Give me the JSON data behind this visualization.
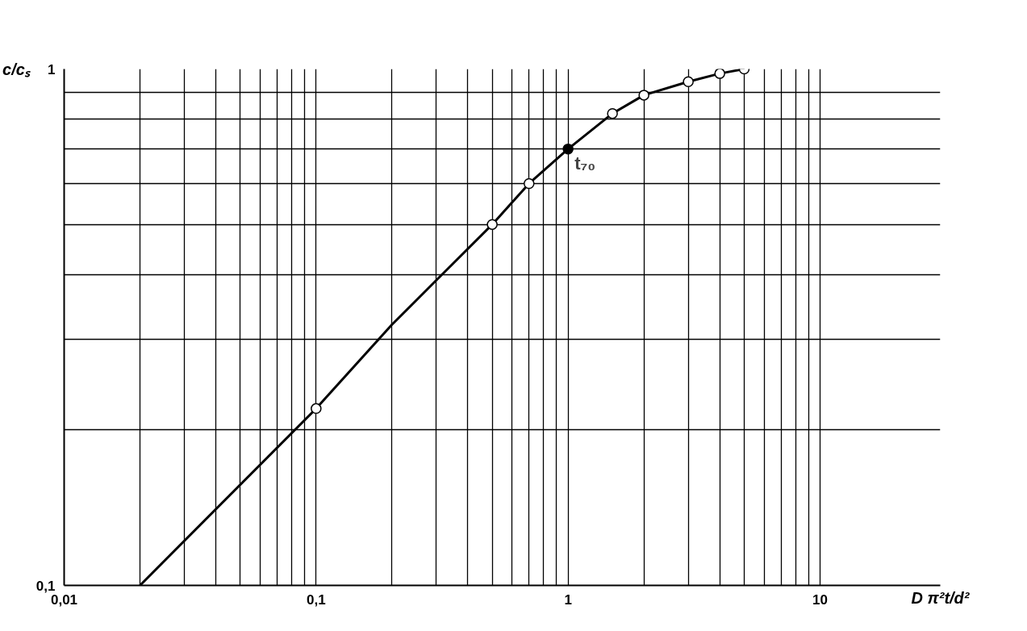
{
  "chart_data": {
    "type": "line",
    "xlabel": "D π²t/d²",
    "ylabel": "c/cₛ",
    "log": "xy",
    "grid": true,
    "xlim": [
      0.01,
      30
    ],
    "ylim": [
      0.1,
      1
    ],
    "xticks": [
      {
        "value": 0.01,
        "label": "0,01"
      },
      {
        "value": 0.02,
        "label": null
      },
      {
        "value": 0.03,
        "label": null
      },
      {
        "value": 0.04,
        "label": null
      },
      {
        "value": 0.05,
        "label": null
      },
      {
        "value": 0.06,
        "label": null
      },
      {
        "value": 0.07,
        "label": null
      },
      {
        "value": 0.08,
        "label": null
      },
      {
        "value": 0.09,
        "label": null
      },
      {
        "value": 0.1,
        "label": "0,1"
      },
      {
        "value": 0.2,
        "label": null
      },
      {
        "value": 0.3,
        "label": null
      },
      {
        "value": 0.4,
        "label": null
      },
      {
        "value": 0.5,
        "label": null
      },
      {
        "value": 0.6,
        "label": null
      },
      {
        "value": 0.7,
        "label": null
      },
      {
        "value": 0.8,
        "label": null
      },
      {
        "value": 0.9,
        "label": null
      },
      1,
      {
        "value": 2,
        "label": null
      },
      {
        "value": 3,
        "label": null
      },
      {
        "value": 4,
        "label": null
      },
      {
        "value": 5,
        "label": null
      },
      {
        "value": 6,
        "label": null
      },
      {
        "value": 7,
        "label": null
      },
      {
        "value": 8,
        "label": null
      },
      {
        "value": 9,
        "label": null
      },
      10
    ],
    "yticks": [
      {
        "value": 0.1,
        "label": "0,1"
      },
      {
        "value": 0.2,
        "label": null
      },
      {
        "value": 0.3,
        "label": null
      },
      {
        "value": 0.4,
        "label": null
      },
      {
        "value": 0.5,
        "label": null
      },
      {
        "value": 0.6,
        "label": null
      },
      {
        "value": 0.7,
        "label": null
      },
      {
        "value": 0.8,
        "label": null
      },
      {
        "value": 0.9,
        "label": null
      },
      1
    ],
    "series": [
      {
        "color": "#000000",
        "marker": "none",
        "line_style": "solid",
        "x": [
          0.02,
          0.1,
          0.2,
          0.3,
          0.5,
          0.7,
          1,
          1.5,
          2,
          3,
          4,
          5
        ],
        "values": [
          0.1,
          0.22,
          0.32,
          0.39,
          0.5,
          0.6,
          0.7,
          0.82,
          0.89,
          0.945,
          0.98,
          1.0
        ]
      },
      {
        "type": "scatter",
        "color": "#ffffff",
        "marker": "circle",
        "x": [
          0.1,
          0.5,
          0.7,
          1.5,
          2,
          3,
          4,
          5
        ],
        "values": [
          0.22,
          0.5,
          0.6,
          0.82,
          0.89,
          0.945,
          0.98,
          1.0
        ]
      },
      {
        "type": "scatter",
        "color": "#000000",
        "marker": "circle",
        "x": [
          1
        ],
        "values": [
          0.7
        ]
      }
    ],
    "annotations": [
      {
        "text": "t₇₀",
        "x": 1,
        "y": 0.7
      }
    ]
  }
}
